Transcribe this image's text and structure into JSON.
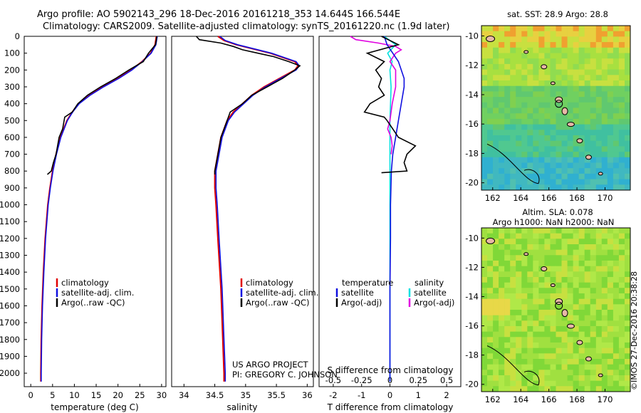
{
  "header": {
    "line1": "Argo profile: AO 5902143_296 18-Dec-2016 20161218_353 14.644S 166.544E",
    "line2": "Climatology: CARS2009. Satellite-adjusted climatology: synTS_20161220.nc (1.9d later)"
  },
  "colors": {
    "climatology": "#e00000",
    "satellite": "#1010e0",
    "argo": "#000000",
    "sal_satellite": "#00e0e0",
    "sal_argo": "#e000e0"
  },
  "legend_ts": {
    "items": [
      "climatology",
      "satellite-adj. clim.",
      "Argo(..raw -QC)"
    ]
  },
  "legend_diff": {
    "temp_title": "temperature",
    "sal_title": "salinity",
    "temp_items": [
      "satellite",
      "Argo(-adj)"
    ],
    "sal_items": [
      "satellite",
      "Argo(-adj)"
    ]
  },
  "credits": {
    "project": "US ARGO PROJECT",
    "pi": "PI: GREGORY C. JOHNSON"
  },
  "map_sst": {
    "title": "sat. SST: 28.9  Argo: 28.8",
    "lat_ticks": [
      "-10",
      "-12",
      "-14",
      "-16",
      "-18",
      "-20"
    ],
    "lon_ticks": [
      "162",
      "164",
      "166",
      "168",
      "170"
    ]
  },
  "map_sla": {
    "title1": "Altim. SLA: 0.078",
    "title2": "Argo h1000: NaN  h2000: NaN",
    "lat_ticks": [
      "-10",
      "-12",
      "-14",
      "-16",
      "-18",
      "-20"
    ],
    "lon_ticks": [
      "162",
      "164",
      "166",
      "168",
      "170"
    ]
  },
  "stamp": "©IMOS 27-Dec-2016 20:38:28",
  "chart_data": [
    {
      "type": "line",
      "name": "temperature",
      "xlabel": "temperature (deg C)",
      "xlim": [
        -1.5,
        31
      ],
      "ylim": [
        2080,
        0
      ],
      "x_ticks": [
        0,
        5,
        10,
        15,
        20,
        25,
        30
      ],
      "y_ticks": [
        0,
        100,
        200,
        300,
        400,
        500,
        600,
        700,
        800,
        900,
        1000,
        1100,
        1200,
        1300,
        1400,
        1500,
        1600,
        1700,
        1800,
        1900,
        2000
      ],
      "series": [
        {
          "name": "climatology",
          "depth": [
            0,
            50,
            100,
            150,
            200,
            250,
            300,
            350,
            400,
            450,
            500,
            600,
            700,
            800,
            900,
            1000,
            1200,
            1400,
            1600,
            1800,
            2000,
            2050
          ],
          "values": [
            28.8,
            28.5,
            27.5,
            25.5,
            23,
            20,
            16.5,
            13.5,
            11,
            9.5,
            8.3,
            6.8,
            5.8,
            5,
            4.4,
            3.9,
            3.3,
            2.9,
            2.6,
            2.4,
            2.3,
            2.3
          ]
        },
        {
          "name": "satellite-adj. clim.",
          "depth": [
            0,
            50,
            100,
            150,
            200,
            250,
            300,
            350,
            400,
            450,
            500,
            600,
            700,
            800,
            900,
            1000,
            1200,
            1400,
            1600,
            1800,
            2000,
            2050
          ],
          "values": [
            29,
            28.7,
            27.6,
            25.6,
            23.2,
            20.2,
            16.7,
            13.6,
            11.1,
            9.6,
            8.4,
            6.9,
            5.9,
            5.1,
            4.5,
            4,
            3.4,
            3,
            2.7,
            2.5,
            2.4,
            2.4
          ]
        },
        {
          "name": "Argo(..raw -QC)",
          "depth": [
            0,
            20,
            50,
            100,
            150,
            200,
            250,
            300,
            350,
            400,
            450,
            480,
            550,
            600,
            700,
            750,
            800,
            820
          ],
          "values": [
            28.9,
            28.8,
            28.6,
            27,
            25.8,
            22.5,
            19.5,
            16,
            13,
            10.8,
            9.5,
            7.8,
            7.3,
            6.5,
            5.8,
            5.2,
            4.7,
            3.8
          ]
        }
      ]
    },
    {
      "type": "line",
      "name": "salinity",
      "xlabel": "salinity",
      "xlim": [
        33.8,
        36.1
      ],
      "ylim": [
        2080,
        0
      ],
      "x_ticks": [
        34,
        34.5,
        35,
        35.5,
        36
      ],
      "series": [
        {
          "name": "climatology",
          "depth": [
            0,
            25,
            50,
            100,
            150,
            175,
            200,
            250,
            300,
            350,
            400,
            450,
            500,
            600,
            700,
            800,
            900,
            1000,
            1200,
            1500,
            1800,
            2000,
            2050
          ],
          "values": [
            34.55,
            34.65,
            34.85,
            35.4,
            35.8,
            35.85,
            35.8,
            35.55,
            35.3,
            35.1,
            34.95,
            34.8,
            34.7,
            34.6,
            34.55,
            34.5,
            34.5,
            34.52,
            34.55,
            34.6,
            34.63,
            34.65,
            34.65
          ]
        },
        {
          "name": "satellite-adj. clim.",
          "depth": [
            0,
            25,
            50,
            100,
            150,
            175,
            200,
            250,
            300,
            350,
            400,
            450,
            500,
            600,
            700,
            800,
            900,
            1000,
            1200,
            1500,
            1800,
            2000,
            2050
          ],
          "values": [
            34.58,
            34.67,
            34.87,
            35.42,
            35.82,
            35.87,
            35.82,
            35.57,
            35.32,
            35.12,
            34.97,
            34.82,
            34.72,
            34.62,
            34.57,
            34.52,
            34.52,
            34.54,
            34.57,
            34.62,
            34.65,
            34.67,
            34.67
          ]
        },
        {
          "name": "Argo(..raw -QC)",
          "depth": [
            0,
            20,
            40,
            60,
            80,
            100,
            120,
            150,
            175,
            200,
            250,
            300,
            350,
            400,
            450,
            500,
            600,
            700,
            800,
            820
          ],
          "values": [
            34.2,
            34.25,
            34.6,
            34.8,
            34.95,
            35.2,
            35.45,
            35.7,
            35.88,
            35.8,
            35.6,
            35.35,
            35.1,
            34.95,
            34.75,
            34.7,
            34.6,
            34.55,
            34.5,
            34.5
          ]
        }
      ]
    },
    {
      "type": "line",
      "name": "difference from climatology",
      "xlabel": "T difference from climatology",
      "xlabel_top": "S difference from climatology",
      "xlim": [
        -2.5,
        2.5
      ],
      "ylim": [
        2080,
        0
      ],
      "x_ticks": [
        -2,
        -1,
        0,
        1,
        2
      ],
      "x_ticks_sal": [
        "-0.5",
        "-0.25",
        "0",
        "0.25",
        "0.5"
      ],
      "series": [
        {
          "name": "T satellite",
          "depth": [
            0,
            50,
            100,
            150,
            200,
            250,
            300,
            400,
            500,
            600,
            700,
            800,
            1000,
            1200,
            1500,
            1800,
            2000,
            2050
          ],
          "values": [
            -0.2,
            -0.1,
            0.1,
            0.3,
            0.4,
            0.5,
            0.5,
            0.4,
            0.3,
            0.2,
            0.1,
            0.05,
            0.02,
            0.02,
            0,
            0,
            0,
            0
          ]
        },
        {
          "name": "T Argo(-adj)",
          "depth": [
            0,
            50,
            100,
            150,
            200,
            250,
            300,
            350,
            400,
            450,
            480,
            500,
            550,
            600,
            650,
            700,
            750,
            800,
            810
          ],
          "values": [
            -0.3,
            0.3,
            -0.8,
            -0.2,
            -0.5,
            -0.3,
            -0.4,
            -0.2,
            -0.7,
            -0.9,
            -0.2,
            -0.1,
            0.1,
            0.3,
            0.9,
            0.6,
            0.5,
            0.6,
            -0.3
          ]
        },
        {
          "name": "S satellite",
          "depth": [
            0,
            50,
            100,
            150,
            200,
            300,
            500,
            800,
            1000,
            1500,
            2000,
            2050
          ],
          "values": [
            -0.05,
            0.05,
            -0.02,
            0.02,
            0,
            0.01,
            0,
            0,
            0,
            0,
            0,
            0
          ]
        },
        {
          "name": "S Argo(-adj)",
          "depth": [
            0,
            20,
            40,
            60,
            80,
            100,
            150,
            200,
            300,
            400,
            500,
            550,
            600,
            650,
            700
          ],
          "values": [
            -0.35,
            -0.3,
            -0.1,
            0.05,
            0.1,
            0.05,
            0,
            0.05,
            0.05,
            0.02,
            0,
            -0.02,
            0.01,
            0.02,
            0.01
          ]
        }
      ]
    }
  ]
}
